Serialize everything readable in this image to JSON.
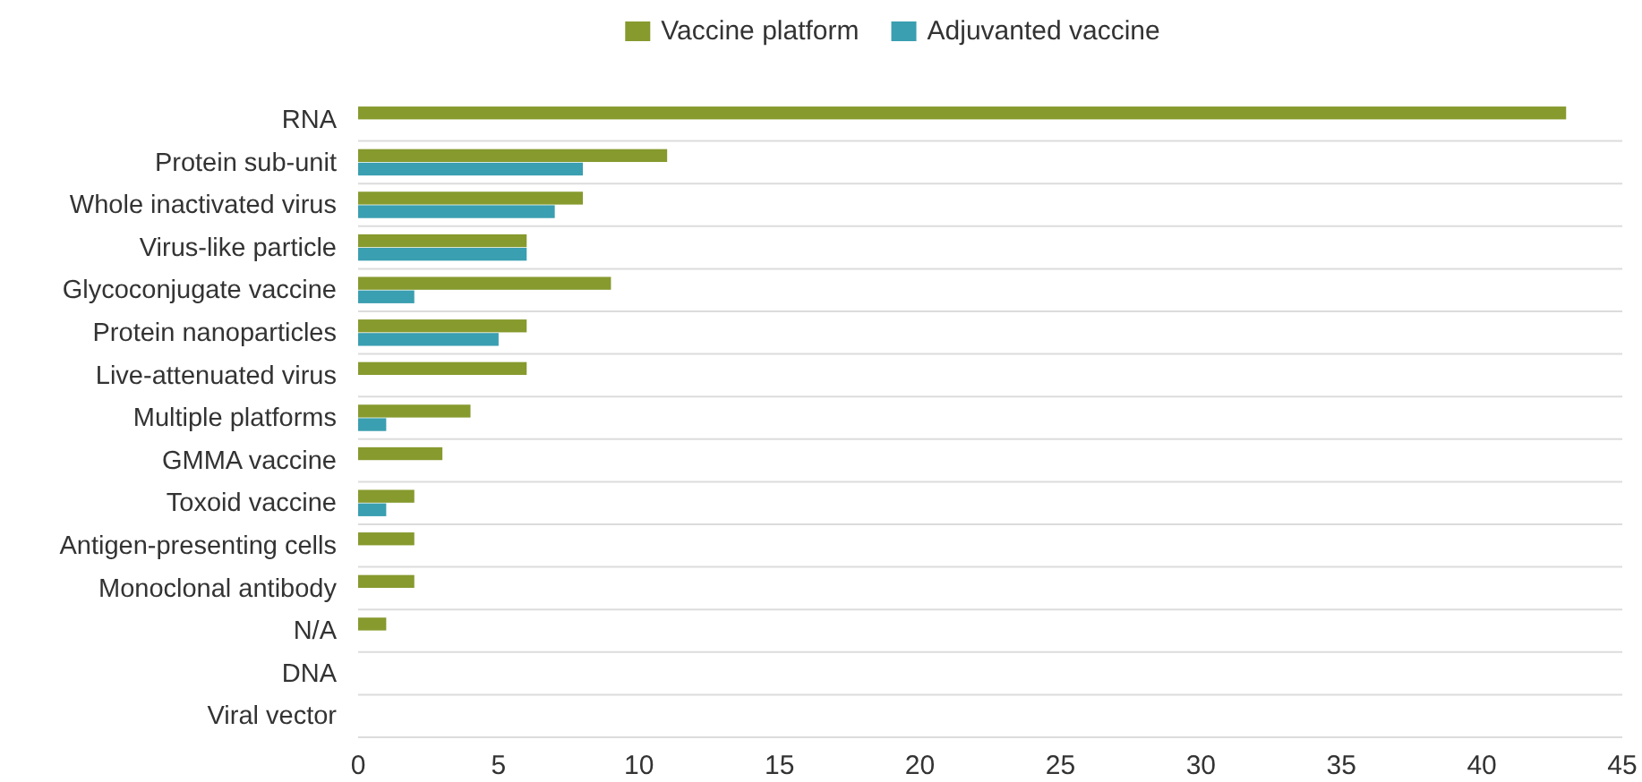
{
  "chart_data": {
    "type": "bar",
    "orientation": "horizontal",
    "categories": [
      "RNA",
      "Protein sub-unit",
      "Whole inactivated virus",
      "Virus-like particle",
      "Glycoconjugate vaccine",
      "Protein nanoparticles",
      "Live-attenuated virus",
      "Multiple platforms",
      "GMMA vaccine",
      "Toxoid vaccine",
      "Antigen-presenting cells",
      "Monoclonal antibody",
      "N/A",
      "DNA",
      "Viral vector"
    ],
    "series": [
      {
        "name": "Vaccine platform",
        "color": "#869a2e",
        "values": [
          43,
          11,
          8,
          6,
          9,
          6,
          6,
          4,
          3,
          2,
          2,
          2,
          1,
          0,
          0
        ]
      },
      {
        "name": "Adjuvanted vaccine",
        "color": "#3a9fb0",
        "values": [
          0,
          8,
          7,
          6,
          2,
          5,
          0,
          1,
          0,
          1,
          0,
          0,
          0,
          0,
          0
        ]
      }
    ],
    "xlim": [
      0,
      45
    ],
    "xticks": [
      0,
      5,
      10,
      15,
      20,
      25,
      30,
      35,
      40,
      45
    ],
    "grid": "y",
    "legend": "top"
  }
}
